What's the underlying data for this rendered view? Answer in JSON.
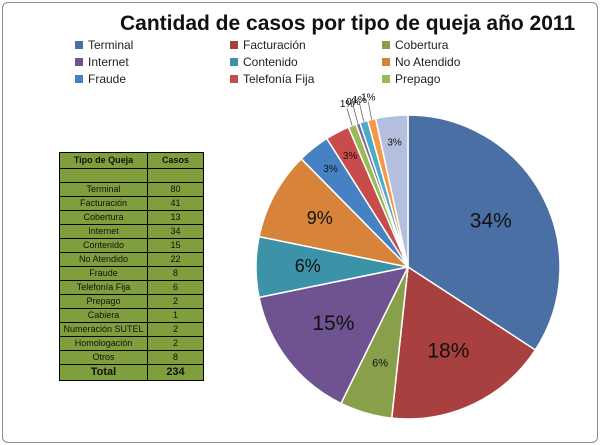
{
  "chart_data": {
    "type": "pie",
    "title": "Cantidad de casos por tipo de queja año 2011",
    "legend_position": "top",
    "slices": [
      {
        "name": "Terminal",
        "value": 80,
        "label": "34%",
        "color": "#4a6fa5"
      },
      {
        "name": "Facturación",
        "value": 41,
        "label": "18%",
        "color": "#a8403f"
      },
      {
        "name": "Cobertura",
        "value": 13,
        "label": "6%",
        "color": "#88a04a"
      },
      {
        "name": "Internet",
        "value": 34,
        "label": "15%",
        "color": "#6f5390"
      },
      {
        "name": "Contenido",
        "value": 15,
        "label": "6%",
        "color": "#3c93a8"
      },
      {
        "name": "No Atendido",
        "value": 22,
        "label": "9%",
        "color": "#d7843a"
      },
      {
        "name": "Fraude",
        "value": 8,
        "label": "3%",
        "color": "#4682c3"
      },
      {
        "name": "Telefonía Fija",
        "value": 6,
        "label": "3%",
        "color": "#c94c4c"
      },
      {
        "name": "Prepago",
        "value": 2,
        "label": "1%",
        "color": "#99bb55"
      },
      {
        "name": "Cabiera",
        "value": 1,
        "label": "0%",
        "color": "#8064a2"
      },
      {
        "name": "Numeración SUTEL",
        "value": 2,
        "label": "1%",
        "color": "#4bacc6"
      },
      {
        "name": "Homologación",
        "value": 2,
        "label": "1%",
        "color": "#f79646"
      },
      {
        "name": "Otros",
        "value": 8,
        "label": "3%",
        "color": "#b3bfdc"
      }
    ],
    "legend_entries": [
      "Terminal",
      "Facturación",
      "Cobertura",
      "Internet",
      "Contenido",
      "No Atendido",
      "Fraude",
      "Telefonía Fija",
      "Prepago"
    ]
  },
  "table": {
    "headers": [
      "Tipo de Queja",
      "Casos"
    ],
    "rows": [
      {
        "tipo": "Terminal",
        "casos": "80"
      },
      {
        "tipo": "Facturación",
        "casos": "41"
      },
      {
        "tipo": "Cobertura",
        "casos": "13"
      },
      {
        "tipo": "Internet",
        "casos": "34"
      },
      {
        "tipo": "Contenido",
        "casos": "15"
      },
      {
        "tipo": "No Atendido",
        "casos": "22"
      },
      {
        "tipo": "Fraude",
        "casos": "8"
      },
      {
        "tipo": "Telefonía Fija",
        "casos": "6"
      },
      {
        "tipo": "Prepago",
        "casos": "2"
      },
      {
        "tipo": "Cabiera",
        "casos": "1"
      },
      {
        "tipo": "Numeración SUTEL",
        "casos": "2"
      },
      {
        "tipo": "Homologación",
        "casos": "2"
      },
      {
        "tipo": "Otros",
        "casos": "8"
      }
    ],
    "total_label": "Total",
    "total_value": "234"
  }
}
